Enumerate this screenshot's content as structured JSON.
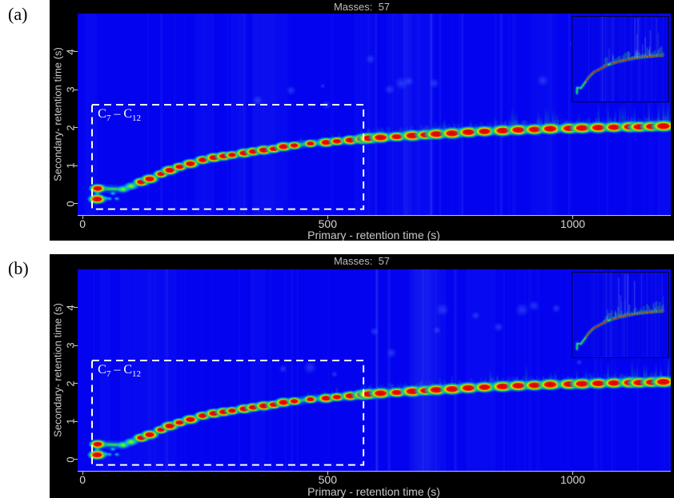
{
  "colors": {
    "page_bg": "#ffffff",
    "panel_bg": "#000000",
    "plot_bg": "#0303f0",
    "title_text": "#bdbdbd",
    "axis_text": "#c9c9c9",
    "tick_text": "#d6d6d6",
    "axis_line": "#c9c9d8",
    "annotation_text": "#ffffff",
    "box_stroke": "#ffffff",
    "band_green": "#2ee24a",
    "peak_red": "#e00000",
    "halo_cyan": "#00aaff"
  },
  "chart_data": [
    {
      "type": "heatmap",
      "panel_label": "(a)",
      "title": "Masses:  57",
      "xlabel": "Primary - retention time (s)",
      "ylabel": "Secondary- retention time (s)",
      "xlim": [
        -10,
        1200
      ],
      "ylim": [
        -0.3,
        5.0
      ],
      "xticks": [
        0,
        500,
        1000
      ],
      "yticks": [
        0,
        1,
        2,
        3,
        4
      ],
      "colormap": "jet",
      "grid": false,
      "plot_bg": "#0303f0",
      "annotation": {
        "text": "C7 – C12",
        "parts": {
          "base1": "C",
          "sub1": "7",
          "sep": " – ",
          "base2": "C",
          "sub2": "12"
        },
        "x0": 18,
        "x1": 575,
        "y0": -0.17,
        "y1": 2.62
      },
      "inset": {
        "present": true,
        "description": "overview chromatogram with vertical spikes",
        "position": "top-right"
      },
      "peaks": [
        [
          30,
          0.12,
          0.95
        ],
        [
          31,
          0.4,
          0.8
        ],
        [
          48,
          0.14,
          0.28
        ],
        [
          55,
          0.13,
          0.22
        ],
        [
          70,
          0.13,
          0.2
        ],
        [
          62,
          0.27,
          0.3
        ],
        [
          83,
          0.38,
          0.35
        ],
        [
          99,
          0.46,
          0.5
        ],
        [
          120,
          0.57,
          0.78
        ],
        [
          137,
          0.65,
          0.88
        ],
        [
          160,
          0.78,
          0.6
        ],
        [
          178,
          0.88,
          0.92
        ],
        [
          198,
          0.97,
          0.7
        ],
        [
          220,
          1.05,
          0.9
        ],
        [
          245,
          1.15,
          0.75
        ],
        [
          268,
          1.21,
          0.92
        ],
        [
          288,
          1.25,
          0.85
        ],
        [
          305,
          1.28,
          0.62
        ],
        [
          330,
          1.33,
          0.92
        ],
        [
          348,
          1.37,
          0.8
        ],
        [
          370,
          1.41,
          0.95
        ],
        [
          390,
          1.44,
          0.7
        ],
        [
          410,
          1.5,
          0.92
        ],
        [
          432,
          1.53,
          0.62
        ],
        [
          465,
          1.58,
          0.55
        ],
        [
          497,
          1.61,
          0.92
        ],
        [
          519,
          1.64,
          0.72
        ],
        [
          546,
          1.67,
          0.95
        ],
        [
          572,
          1.7,
          0.82
        ],
        [
          584,
          1.72,
          0.9
        ],
        [
          608,
          1.74,
          0.88
        ],
        [
          641,
          1.76,
          0.65
        ],
        [
          673,
          1.79,
          0.95
        ],
        [
          700,
          1.81,
          0.75
        ],
        [
          722,
          1.83,
          0.92
        ],
        [
          754,
          1.85,
          0.95
        ],
        [
          787,
          1.88,
          0.9
        ],
        [
          820,
          1.9,
          0.82
        ],
        [
          857,
          1.92,
          0.95
        ],
        [
          889,
          1.94,
          0.9
        ],
        [
          922,
          1.95,
          0.85
        ],
        [
          954,
          1.97,
          0.95
        ],
        [
          993,
          1.98,
          0.9
        ],
        [
          1019,
          1.99,
          0.95
        ],
        [
          1052,
          2.0,
          0.9
        ],
        [
          1084,
          2.01,
          0.85
        ],
        [
          1117,
          2.02,
          0.95
        ],
        [
          1136,
          2.02,
          0.9
        ],
        [
          1161,
          2.03,
          0.85
        ],
        [
          1185,
          2.04,
          1.0
        ]
      ]
    },
    {
      "type": "heatmap",
      "panel_label": "(b)",
      "title": "Masses:  57",
      "xlabel": "Primary - retention time (s)",
      "ylabel": "Secondary- retention time (s)",
      "xlim": [
        -10,
        1200
      ],
      "ylim": [
        -0.3,
        5.0
      ],
      "xticks": [
        0,
        500,
        1000
      ],
      "yticks": [
        0,
        1,
        2,
        3,
        4
      ],
      "colormap": "jet",
      "grid": false,
      "plot_bg": "#0303f0",
      "annotation": {
        "text": "C7 – C12",
        "parts": {
          "base1": "C",
          "sub1": "7",
          "sep": " – ",
          "base2": "C",
          "sub2": "12"
        },
        "x0": 18,
        "x1": 575,
        "y0": -0.17,
        "y1": 2.62
      },
      "inset": {
        "present": true,
        "description": "overview chromatogram with vertical spikes",
        "position": "top-right"
      },
      "peaks": [
        [
          30,
          0.12,
          0.95
        ],
        [
          31,
          0.4,
          0.8
        ],
        [
          48,
          0.14,
          0.28
        ],
        [
          55,
          0.13,
          0.22
        ],
        [
          70,
          0.13,
          0.2
        ],
        [
          62,
          0.27,
          0.3
        ],
        [
          83,
          0.38,
          0.35
        ],
        [
          99,
          0.46,
          0.5
        ],
        [
          120,
          0.57,
          0.78
        ],
        [
          137,
          0.65,
          0.88
        ],
        [
          160,
          0.78,
          0.6
        ],
        [
          178,
          0.88,
          0.92
        ],
        [
          198,
          0.97,
          0.7
        ],
        [
          220,
          1.05,
          0.9
        ],
        [
          245,
          1.15,
          0.75
        ],
        [
          268,
          1.21,
          0.92
        ],
        [
          288,
          1.25,
          0.85
        ],
        [
          305,
          1.28,
          0.62
        ],
        [
          330,
          1.33,
          0.92
        ],
        [
          348,
          1.37,
          0.8
        ],
        [
          370,
          1.41,
          0.95
        ],
        [
          390,
          1.44,
          0.7
        ],
        [
          410,
          1.5,
          0.92
        ],
        [
          432,
          1.53,
          0.62
        ],
        [
          465,
          1.58,
          0.55
        ],
        [
          497,
          1.61,
          0.92
        ],
        [
          519,
          1.64,
          0.72
        ],
        [
          546,
          1.67,
          0.95
        ],
        [
          572,
          1.7,
          0.82
        ],
        [
          584,
          1.72,
          0.9
        ],
        [
          608,
          1.74,
          0.88
        ],
        [
          641,
          1.76,
          0.65
        ],
        [
          673,
          1.79,
          0.95
        ],
        [
          700,
          1.81,
          0.75
        ],
        [
          722,
          1.83,
          0.92
        ],
        [
          754,
          1.85,
          0.95
        ],
        [
          787,
          1.88,
          0.9
        ],
        [
          820,
          1.9,
          0.82
        ],
        [
          857,
          1.92,
          0.95
        ],
        [
          889,
          1.94,
          0.9
        ],
        [
          922,
          1.95,
          0.85
        ],
        [
          954,
          1.97,
          0.95
        ],
        [
          993,
          1.98,
          0.9
        ],
        [
          1019,
          1.99,
          0.95
        ],
        [
          1052,
          2.0,
          0.9
        ],
        [
          1084,
          2.01,
          0.85
        ],
        [
          1117,
          2.02,
          0.95
        ],
        [
          1136,
          2.02,
          0.9
        ],
        [
          1161,
          2.03,
          0.85
        ],
        [
          1185,
          2.04,
          1.0
        ]
      ]
    }
  ]
}
